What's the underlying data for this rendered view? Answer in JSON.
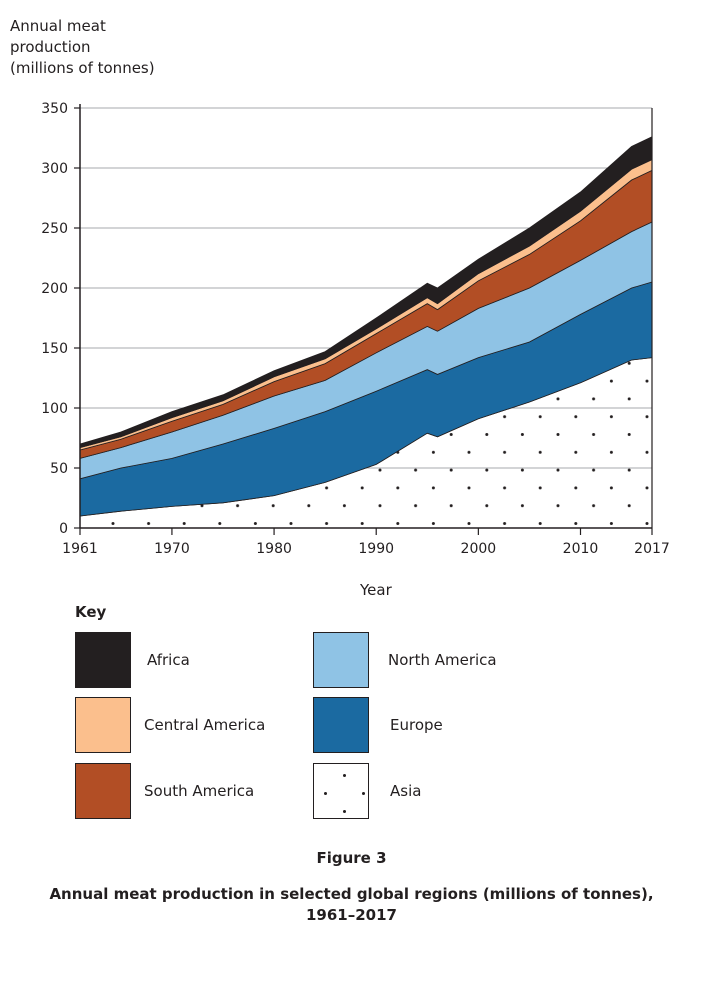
{
  "chart_data": {
    "type": "area",
    "stacked": true,
    "ylabel_lines": [
      "Annual meat",
      "production",
      "(millions of tonnes)"
    ],
    "xlabel": "Year",
    "ylim": [
      0,
      350
    ],
    "yticks": [
      0,
      50,
      100,
      150,
      200,
      250,
      300,
      350
    ],
    "xlim": [
      1961,
      2017
    ],
    "xticks": [
      1961,
      1970,
      1980,
      1990,
      2000,
      2010,
      2017
    ],
    "grid": true,
    "x": [
      1961,
      1965,
      1970,
      1975,
      1980,
      1985,
      1990,
      1995,
      1996,
      2000,
      2005,
      2010,
      2015,
      2017
    ],
    "series": [
      {
        "name": "Asia",
        "color": "#ffffff",
        "pattern": "dots",
        "values": [
          10,
          14,
          18,
          21,
          27,
          38,
          53,
          79,
          76,
          91,
          105,
          121,
          140,
          142
        ]
      },
      {
        "name": "Europe",
        "color": "#1b6aa1",
        "values": [
          31,
          36,
          40,
          49,
          56,
          59,
          61,
          53,
          52,
          51,
          50,
          57,
          60,
          63
        ]
      },
      {
        "name": "North America",
        "color": "#8fc3e5",
        "values": [
          17,
          17,
          22,
          24,
          27,
          26,
          32,
          36,
          36,
          41,
          45,
          45,
          47,
          50
        ]
      },
      {
        "name": "South America",
        "color": "#b24e25",
        "values": [
          7,
          7,
          9,
          9,
          12,
          14,
          16,
          19,
          18,
          23,
          28,
          33,
          43,
          43
        ]
      },
      {
        "name": "Central America",
        "color": "#fbbf8d",
        "values": [
          2,
          2,
          3,
          3,
          4,
          4,
          4,
          5,
          5,
          6,
          7,
          8,
          9,
          9
        ]
      },
      {
        "name": "Africa",
        "color": "#231f20",
        "values": [
          3,
          4,
          5,
          5,
          5,
          6,
          9,
          12,
          13,
          12,
          15,
          16,
          19,
          19
        ]
      }
    ],
    "legend": {
      "title": "Key",
      "placement": "bottom"
    }
  },
  "figure_label": "Figure 3",
  "caption_lines": [
    "Annual meat production in selected global regions (millions of tonnes),",
    "1961–2017"
  ]
}
